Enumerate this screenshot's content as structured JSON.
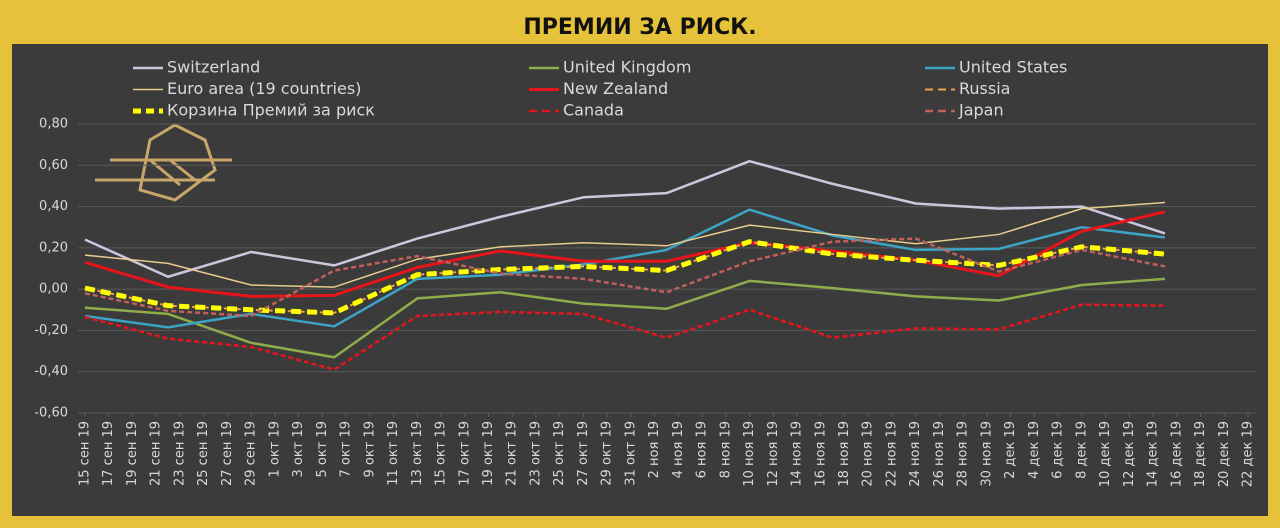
{
  "chart_data": {
    "type": "line",
    "title": "ПРЕМИИ ЗА РИСК.",
    "x": [
      0,
      7,
      14,
      21,
      28,
      35,
      42,
      49,
      56,
      63,
      70,
      77,
      84,
      91
    ],
    "xlim": [
      0,
      98
    ],
    "xticks": [
      {
        "value": 0,
        "label": "15 сен 19"
      },
      {
        "value": 2,
        "label": "17 сен 19"
      },
      {
        "value": 4,
        "label": "19 сен 19"
      },
      {
        "value": 6,
        "label": "21 сен 19"
      },
      {
        "value": 8,
        "label": "23 сен 19"
      },
      {
        "value": 10,
        "label": "25 сен 19"
      },
      {
        "value": 12,
        "label": "27 сен 19"
      },
      {
        "value": 14,
        "label": "29 сен 19"
      },
      {
        "value": 16,
        "label": "1 окт 19"
      },
      {
        "value": 18,
        "label": "3 окт 19"
      },
      {
        "value": 20,
        "label": "5 окт 19"
      },
      {
        "value": 22,
        "label": "7 окт 19"
      },
      {
        "value": 24,
        "label": "9 окт 19"
      },
      {
        "value": 26,
        "label": "11 окт 19"
      },
      {
        "value": 28,
        "label": "13 окт 19"
      },
      {
        "value": 30,
        "label": "15 окт 19"
      },
      {
        "value": 32,
        "label": "17 окт 19"
      },
      {
        "value": 34,
        "label": "19 окт 19"
      },
      {
        "value": 36,
        "label": "21 окт 19"
      },
      {
        "value": 38,
        "label": "23 окт 19"
      },
      {
        "value": 40,
        "label": "25 окт 19"
      },
      {
        "value": 42,
        "label": "27 окт 19"
      },
      {
        "value": 44,
        "label": "29 окт 19"
      },
      {
        "value": 46,
        "label": "31 окт 19"
      },
      {
        "value": 48,
        "label": "2 ноя 19"
      },
      {
        "value": 50,
        "label": "4 ноя 19"
      },
      {
        "value": 52,
        "label": "6 ноя 19"
      },
      {
        "value": 54,
        "label": "8 ноя 19"
      },
      {
        "value": 56,
        "label": "10 ноя 19"
      },
      {
        "value": 58,
        "label": "12 ноя 19"
      },
      {
        "value": 60,
        "label": "14 ноя 19"
      },
      {
        "value": 62,
        "label": "16 ноя 19"
      },
      {
        "value": 64,
        "label": "18 ноя 19"
      },
      {
        "value": 66,
        "label": "20 ноя 19"
      },
      {
        "value": 68,
        "label": "22 ноя 19"
      },
      {
        "value": 70,
        "label": "24 ноя 19"
      },
      {
        "value": 72,
        "label": "26 ноя 19"
      },
      {
        "value": 74,
        "label": "28 ноя 19"
      },
      {
        "value": 76,
        "label": "30 ноя 19"
      },
      {
        "value": 78,
        "label": "2 дек 19"
      },
      {
        "value": 80,
        "label": "4 дек 19"
      },
      {
        "value": 82,
        "label": "6 дек 19"
      },
      {
        "value": 84,
        "label": "8 дек 19"
      },
      {
        "value": 86,
        "label": "10 дек 19"
      },
      {
        "value": 88,
        "label": "12 дек 19"
      },
      {
        "value": 90,
        "label": "14 дек 19"
      },
      {
        "value": 92,
        "label": "16 дек 19"
      },
      {
        "value": 94,
        "label": "18 дек 19"
      },
      {
        "value": 96,
        "label": "20 дек 19"
      },
      {
        "value": 98,
        "label": "22 дек 19"
      }
    ],
    "ylim": [
      -0.6,
      0.8
    ],
    "yticks": [
      {
        "value": -0.6,
        "label": "-0,60"
      },
      {
        "value": -0.4,
        "label": "-0,40"
      },
      {
        "value": -0.2,
        "label": "-0,20"
      },
      {
        "value": 0,
        "label": "0,00"
      },
      {
        "value": 0.2,
        "label": "0,20"
      },
      {
        "value": 0.4,
        "label": "0,40"
      },
      {
        "value": 0.6,
        "label": "0,60"
      },
      {
        "value": 0.8,
        "label": "0,80"
      }
    ],
    "grid": true,
    "series": [
      {
        "name": "Switzerland",
        "color": "#cfc6de",
        "width": 2.5,
        "dashed": false,
        "values": [
          0.24,
          0.06,
          0.18,
          0.115,
          0.245,
          0.35,
          0.445,
          0.465,
          0.62,
          0.51,
          0.415,
          0.39,
          0.4,
          0.27
        ]
      },
      {
        "name": "United Kingdom",
        "color": "#8fad4a",
        "width": 2.5,
        "dashed": false,
        "values": [
          -0.09,
          -0.12,
          -0.26,
          -0.33,
          -0.045,
          -0.015,
          -0.07,
          -0.095,
          0.04,
          0.005,
          -0.035,
          -0.055,
          0.02,
          0.05
        ]
      },
      {
        "name": "United States",
        "color": "#3ca4c6",
        "width": 2.5,
        "dashed": false,
        "values": [
          -0.13,
          -0.185,
          -0.12,
          -0.18,
          0.05,
          0.07,
          0.12,
          0.19,
          0.385,
          0.26,
          0.19,
          0.195,
          0.3,
          0.25
        ]
      },
      {
        "name": "Euro area (19 countries)",
        "color": "#e8cc8c",
        "width": 1.5,
        "dashed": false,
        "values": [
          0.165,
          0.125,
          0.02,
          0.01,
          0.145,
          0.205,
          0.225,
          0.21,
          0.31,
          0.265,
          0.22,
          0.265,
          0.39,
          0.42
        ]
      },
      {
        "name": "New Zealand",
        "color": "#e8141b",
        "width": 3,
        "dashed": false,
        "values": [
          0.13,
          0.01,
          -0.035,
          -0.03,
          0.105,
          0.185,
          0.135,
          0.135,
          0.225,
          0.185,
          0.14,
          0.065,
          0.28,
          0.375
        ]
      },
      {
        "name": "Russia",
        "color": "#f0a050",
        "width": 2,
        "dashed": true,
        "values": [
          0.005,
          -0.08,
          -0.1,
          -0.115,
          0.07,
          0.095,
          0.11,
          0.09,
          0.23,
          0.17,
          0.14,
          0.115,
          0.205,
          0.17
        ]
      },
      {
        "name": "Корзина Премий за риск",
        "color": "#ffff00",
        "width": 5,
        "dashed": true,
        "values": [
          0.005,
          -0.08,
          -0.1,
          -0.115,
          0.07,
          0.095,
          0.11,
          0.09,
          0.23,
          0.17,
          0.14,
          0.115,
          0.205,
          0.17
        ]
      },
      {
        "name": "Canada",
        "color": "#e8141b",
        "width": 2.5,
        "dashed": true,
        "values": [
          -0.135,
          -0.24,
          -0.28,
          -0.39,
          -0.13,
          -0.11,
          -0.12,
          -0.235,
          -0.1,
          -0.235,
          -0.19,
          -0.195,
          -0.075,
          -0.08
        ]
      },
      {
        "name": "Japan",
        "color": "#c0605a",
        "width": 2.5,
        "dashed": true,
        "values": [
          -0.02,
          -0.105,
          -0.13,
          0.09,
          0.16,
          0.075,
          0.05,
          -0.015,
          0.135,
          0.23,
          0.245,
          0.085,
          0.19,
          0.11
        ]
      }
    ]
  }
}
